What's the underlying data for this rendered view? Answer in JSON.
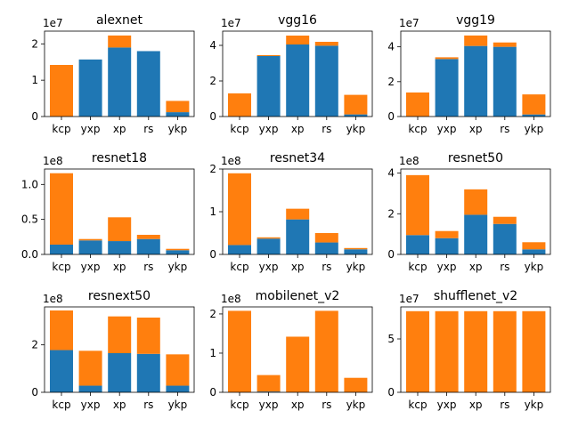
{
  "colors": {
    "series1": "#1f77b4",
    "series2": "#ff7f0e"
  },
  "chart_data": [
    {
      "type": "bar",
      "title": "alexnet",
      "stacked": true,
      "categories": [
        "kcp",
        "yxp",
        "xp",
        "rs",
        "ykp"
      ],
      "multiplier_label": "1e7",
      "ylim": [
        0,
        2.35
      ],
      "yticks": [
        0,
        1,
        2
      ],
      "ytick_labels": [
        "0",
        "1",
        "2"
      ],
      "series": [
        {
          "values": [
            0.0,
            1.57,
            1.9,
            1.8,
            0.12
          ]
        },
        {
          "values": [
            1.42,
            0.0,
            0.33,
            0.0,
            0.31
          ]
        }
      ]
    },
    {
      "type": "bar",
      "title": "vgg16",
      "stacked": true,
      "categories": [
        "kcp",
        "yxp",
        "xp",
        "rs",
        "ykp"
      ],
      "multiplier_label": "1e7",
      "ylim": [
        0,
        4.8
      ],
      "yticks": [
        0,
        2,
        4
      ],
      "ytick_labels": [
        "0",
        "2",
        "4"
      ],
      "series": [
        {
          "values": [
            0.0,
            3.4,
            4.05,
            3.98,
            0.12
          ]
        },
        {
          "values": [
            1.3,
            0.05,
            0.5,
            0.22,
            1.1
          ]
        }
      ]
    },
    {
      "type": "bar",
      "title": "vgg19",
      "stacked": true,
      "categories": [
        "kcp",
        "yxp",
        "xp",
        "rs",
        "ykp"
      ],
      "multiplier_label": "1e7",
      "ylim": [
        0,
        4.9
      ],
      "yticks": [
        0,
        2,
        4
      ],
      "ytick_labels": [
        "0",
        "2",
        "4"
      ],
      "series": [
        {
          "values": [
            0.0,
            3.3,
            4.05,
            4.0,
            0.12
          ]
        },
        {
          "values": [
            1.38,
            0.1,
            0.6,
            0.25,
            1.15
          ]
        }
      ]
    },
    {
      "type": "bar",
      "title": "resnet18",
      "stacked": true,
      "categories": [
        "kcp",
        "yxp",
        "xp",
        "rs",
        "ykp"
      ],
      "multiplier_label": "1e8",
      "ylim": [
        0,
        1.22
      ],
      "yticks": [
        0,
        0.5,
        1.0
      ],
      "ytick_labels": [
        "0.0",
        "0.5",
        "1.0"
      ],
      "series": [
        {
          "values": [
            0.14,
            0.2,
            0.19,
            0.22,
            0.06
          ]
        },
        {
          "values": [
            1.02,
            0.02,
            0.34,
            0.06,
            0.02
          ]
        }
      ]
    },
    {
      "type": "bar",
      "title": "resnet34",
      "stacked": true,
      "categories": [
        "kcp",
        "yxp",
        "xp",
        "rs",
        "ykp"
      ],
      "multiplier_label": "1e8",
      "ylim": [
        0,
        2.0
      ],
      "yticks": [
        0,
        1,
        2
      ],
      "ytick_labels": [
        "0",
        "1",
        "2"
      ],
      "series": [
        {
          "values": [
            0.22,
            0.37,
            0.82,
            0.28,
            0.12
          ]
        },
        {
          "values": [
            1.68,
            0.03,
            0.25,
            0.22,
            0.03
          ]
        }
      ]
    },
    {
      "type": "bar",
      "title": "resnet50",
      "stacked": true,
      "categories": [
        "kcp",
        "yxp",
        "xp",
        "rs",
        "ykp"
      ],
      "multiplier_label": "1e8",
      "ylim": [
        0,
        4.2
      ],
      "yticks": [
        0,
        2,
        4
      ],
      "ytick_labels": [
        "0",
        "2",
        "4"
      ],
      "series": [
        {
          "values": [
            0.95,
            0.8,
            1.95,
            1.5,
            0.25
          ]
        },
        {
          "values": [
            2.95,
            0.35,
            1.25,
            0.35,
            0.35
          ]
        }
      ]
    },
    {
      "type": "bar",
      "title": "resnext50",
      "stacked": true,
      "categories": [
        "kcp",
        "yxp",
        "xp",
        "rs",
        "ykp"
      ],
      "multiplier_label": "1e8",
      "ylim": [
        0,
        3.6
      ],
      "yticks": [
        0,
        2
      ],
      "ytick_labels": [
        "0",
        "2"
      ],
      "series": [
        {
          "values": [
            1.78,
            0.28,
            1.65,
            1.62,
            0.28
          ]
        },
        {
          "values": [
            1.67,
            1.47,
            1.55,
            1.53,
            1.32
          ]
        }
      ]
    },
    {
      "type": "bar",
      "title": "mobilenet_v2",
      "stacked": true,
      "categories": [
        "kcp",
        "yxp",
        "xp",
        "rs",
        "ykp"
      ],
      "multiplier_label": "1e8",
      "ylim": [
        0,
        2.18
      ],
      "yticks": [
        0,
        1,
        2
      ],
      "ytick_labels": [
        "0",
        "1",
        "2"
      ],
      "series": [
        {
          "values": [
            0.0,
            0.02,
            0.0,
            0.0,
            0.0
          ]
        },
        {
          "values": [
            2.08,
            0.42,
            1.42,
            2.08,
            0.37
          ]
        }
      ]
    },
    {
      "type": "bar",
      "title": "shufflenet_v2",
      "stacked": true,
      "categories": [
        "kcp",
        "yxp",
        "xp",
        "rs",
        "ykp"
      ],
      "multiplier_label": "1e7",
      "ylim": [
        0,
        8.0
      ],
      "yticks": [
        0,
        5
      ],
      "ytick_labels": [
        "0",
        "5"
      ],
      "series": [
        {
          "values": [
            0.0,
            0.0,
            0.0,
            0.0,
            0.0
          ]
        },
        {
          "values": [
            7.6,
            7.6,
            7.6,
            7.6,
            7.6
          ]
        }
      ]
    }
  ]
}
